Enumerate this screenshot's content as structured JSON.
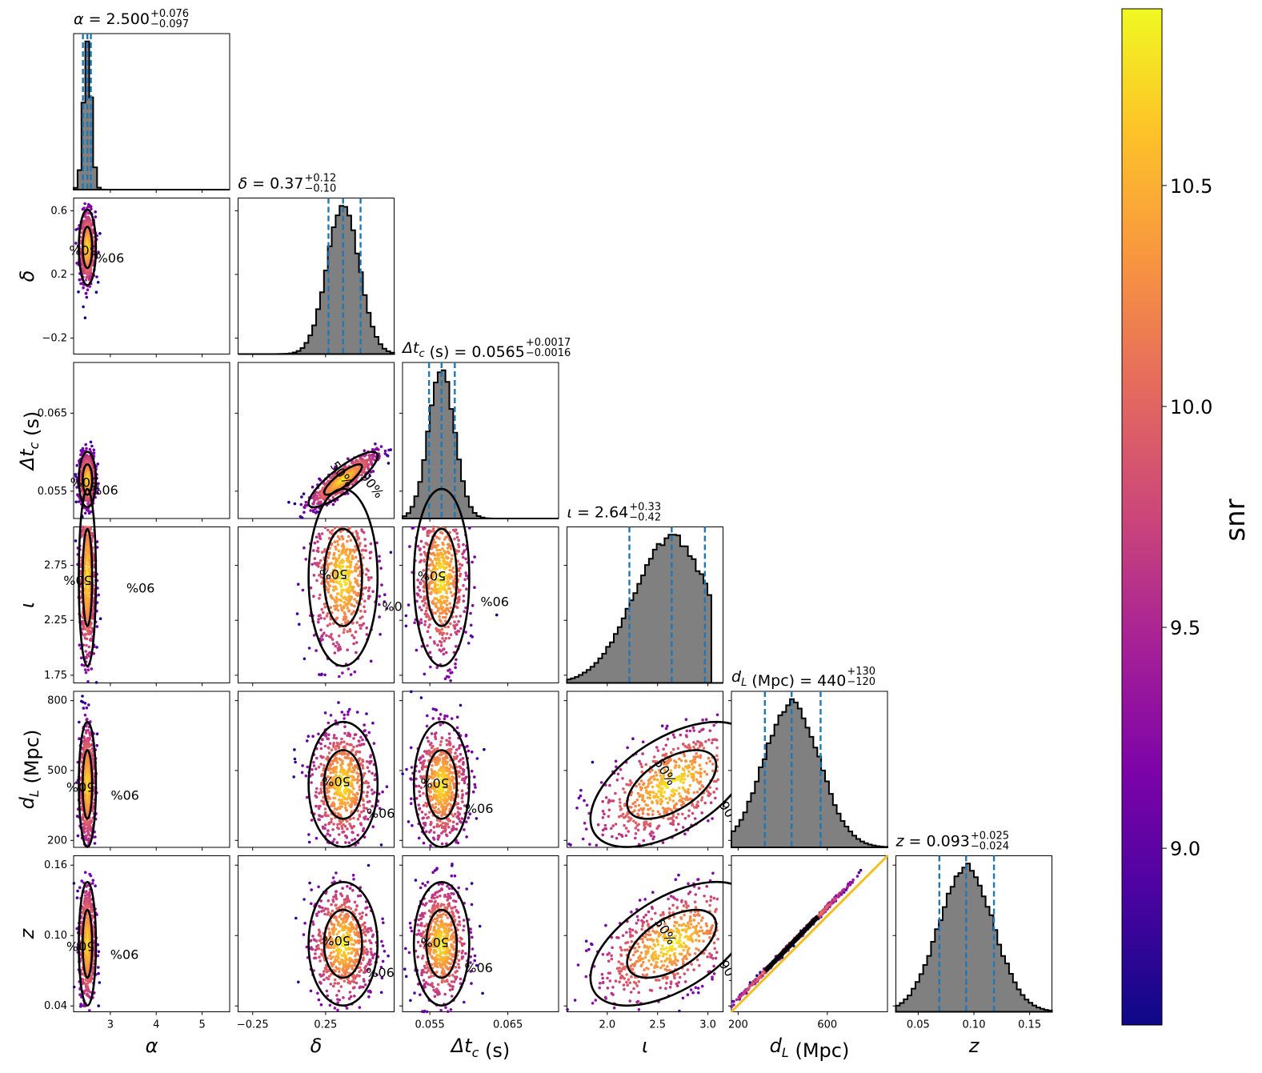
{
  "chart_data": {
    "type": "corner",
    "parameters": [
      {
        "symbol": "α",
        "sub": "",
        "unit": "",
        "median": 2.5,
        "title_value": "2.500",
        "err_plus": "+0.076",
        "err_minus": "−0.097",
        "range": [
          2.2,
          5.6
        ],
        "ticks": [
          3,
          4,
          5
        ],
        "tick_labels": [
          "3",
          "4",
          "5"
        ],
        "q16": 2.403,
        "q84": 2.576
      },
      {
        "symbol": "δ",
        "sub": "",
        "unit": "",
        "median": 0.37,
        "title_value": "0.37",
        "err_plus": "+0.12",
        "err_minus": "−0.10",
        "range": [
          -0.35,
          0.72
        ],
        "ticks": [
          -0.25,
          0.25
        ],
        "tick_labels": [
          "−0.25",
          "0.25"
        ],
        "q16": 0.27,
        "q84": 0.49
      },
      {
        "symbol": "Δt",
        "sub": "c",
        "unit": "(s)",
        "median": 0.0565,
        "title_value": "0.0565",
        "err_plus": "+0.0017",
        "err_minus": "−0.0016",
        "range": [
          0.0515,
          0.0715
        ],
        "ticks": [
          0.055,
          0.065
        ],
        "tick_labels": [
          "0.055",
          "0.065"
        ],
        "q16": 0.0549,
        "q84": 0.0582
      },
      {
        "symbol": "ι",
        "sub": "",
        "unit": "",
        "median": 2.64,
        "title_value": "2.64",
        "err_plus": "+0.33",
        "err_minus": "−0.42",
        "range": [
          1.6,
          3.15
        ],
        "ticks": [
          2.0,
          2.5,
          3.0
        ],
        "tick_labels": [
          "2.0",
          "2.5",
          "3.0"
        ],
        "q16": 2.22,
        "q84": 2.97
      },
      {
        "symbol": "d",
        "sub": "L",
        "unit": "(Mpc)",
        "median": 440,
        "title_value": "440",
        "err_plus": "+130",
        "err_minus": "−120",
        "range": [
          170,
          870
        ],
        "ticks": [
          200,
          600
        ],
        "tick_labels": [
          "200",
          "600"
        ],
        "q16": 320,
        "q84": 570
      },
      {
        "symbol": "z",
        "sub": "",
        "unit": "",
        "median": 0.093,
        "title_value": "0.093",
        "err_plus": "+0.025",
        "err_minus": "−0.024",
        "range": [
          0.03,
          0.17
        ],
        "ticks": [
          0.05,
          0.1,
          0.15
        ],
        "tick_labels": [
          "0.05",
          "0.10",
          "0.15"
        ],
        "q16": 0.069,
        "q84": 0.118
      }
    ],
    "row_ticks": {
      "1": {
        "ticks": [
          -0.2,
          0.2,
          0.6
        ],
        "labels": [
          "−0.2",
          "0.2",
          "0.6"
        ],
        "range": [
          -0.3,
          0.68
        ]
      },
      "2": {
        "ticks": [
          0.055,
          0.065
        ],
        "labels": [
          "0.055",
          "0.065"
        ],
        "range": [
          0.0515,
          0.0715
        ]
      },
      "3": {
        "ticks": [
          1.75,
          2.25,
          2.75
        ],
        "labels": [
          "1.75",
          "2.25",
          "2.75"
        ],
        "range": [
          1.68,
          3.1
        ]
      },
      "4": {
        "ticks": [
          200,
          500,
          800
        ],
        "labels": [
          "200",
          "500",
          "800"
        ],
        "range": [
          170,
          840
        ]
      },
      "5": {
        "ticks": [
          0.04,
          0.1,
          0.16
        ],
        "labels": [
          "0.04",
          "0.10",
          "0.16"
        ],
        "range": [
          0.035,
          0.168
        ]
      }
    },
    "contour_levels": [
      "50%",
      "90%"
    ],
    "colorbar": {
      "label": "snr",
      "min": 8.6,
      "max": 10.9,
      "ticks": [
        9.0,
        9.5,
        10.0,
        10.5
      ],
      "tick_labels": [
        "9.0",
        "9.5",
        "10.0",
        "10.5"
      ],
      "colormap": "plasma"
    },
    "colors": {
      "histogram_fill": "#808080",
      "histogram_edge": "#000000",
      "quantile_lines": "#1f77b4",
      "contour": "#000000"
    }
  }
}
